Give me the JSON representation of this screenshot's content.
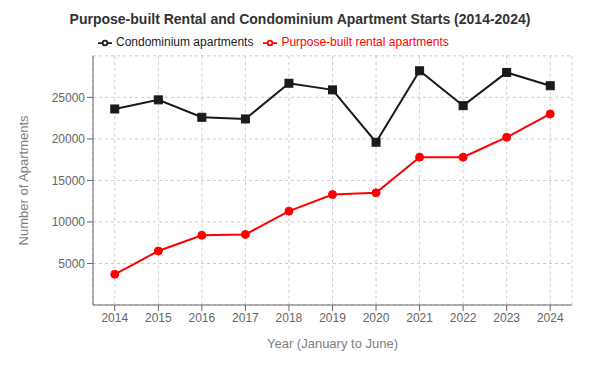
{
  "chart_data": {
    "type": "line",
    "title": "Purpose-built Rental and Condominium Apartment Starts (2014-2024)",
    "xlabel": "Year (January to June)",
    "ylabel": "Number of Apartments",
    "x": [
      2014,
      2015,
      2016,
      2017,
      2018,
      2019,
      2020,
      2021,
      2022,
      2023,
      2024
    ],
    "series": [
      {
        "name": "Purpose-built rental apartments",
        "color": "#ff0000",
        "marker": "circle",
        "values": [
          3700,
          6500,
          8400,
          8500,
          11300,
          13300,
          13500,
          17800,
          17800,
          20200,
          23000
        ]
      },
      {
        "name": "Condominium apartments",
        "color": "#1a1a1a",
        "marker": "square",
        "values": [
          23600,
          24700,
          22600,
          22400,
          26700,
          25900,
          19600,
          28200,
          24000,
          28000,
          26400
        ]
      }
    ],
    "xlim": [
      2013.5,
      2024.5
    ],
    "xticks": [
      2014,
      2015,
      2016,
      2017,
      2018,
      2019,
      2020,
      2021,
      2022,
      2023,
      2024
    ],
    "ylim": [
      0,
      30000
    ],
    "yticks": [
      5000,
      10000,
      15000,
      20000,
      25000
    ],
    "grid": true,
    "legend": "upper left"
  }
}
